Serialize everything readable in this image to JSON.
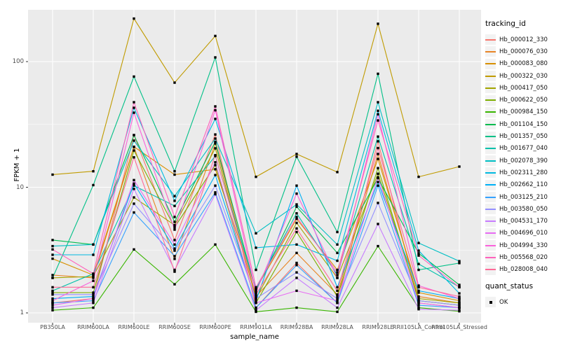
{
  "chart_data": {
    "type": "line",
    "title": "",
    "xlabel": "sample_name",
    "ylabel": "FPKM + 1",
    "y_scale": "log10",
    "y_ticks": [
      1,
      10,
      100
    ],
    "y_minor_ticks": [
      3.1623,
      31.623
    ],
    "ylim": [
      0.95,
      260
    ],
    "grid": true,
    "panel_bg": "#EBEBEB",
    "grid_color": "#FFFFFF",
    "axis_text_color": "#4D4D4D",
    "legend_position": "right",
    "legend_title": "tracking_id",
    "quant_legend_title": "quant_status",
    "quant_status_value": "OK",
    "point_shape": "filled-square",
    "point_color": "#000000",
    "categories": [
      "PB350LA",
      "RRIM600LA",
      "RRIM600LE",
      "RRIM600SE",
      "RRIM600PE",
      "RRIM901LA",
      "RRIM928BA",
      "RRIM928LA",
      "RRIM928LE",
      "RRII105LA_Control",
      "RRII105LA_Stressed"
    ],
    "series": [
      {
        "name": "Hb_000012_330",
        "color": "#F8766D",
        "values": [
          1.2,
          1.3,
          26,
          3.8,
          26.3,
          1.1,
          2.5,
          1.2,
          23.2,
          1.2,
          1.1
        ]
      },
      {
        "name": "Hb_000076_030",
        "color": "#E88526",
        "values": [
          2.0,
          1.9,
          20.9,
          2.69,
          22.3,
          1.35,
          3.0,
          1.4,
          18.4,
          1.35,
          1.2
        ]
      },
      {
        "name": "Hb_000083_080",
        "color": "#D89000",
        "values": [
          2.7,
          2.0,
          21.0,
          12.6,
          13.9,
          1.55,
          5.6,
          2.2,
          16.8,
          1.45,
          1.25
        ]
      },
      {
        "name": "Hb_000322_030",
        "color": "#C09B00",
        "values": [
          12.6,
          13.4,
          220,
          68,
          160,
          12.1,
          18.4,
          13.2,
          200,
          12.1,
          14.6
        ]
      },
      {
        "name": "Hb_000417_050",
        "color": "#A3A500",
        "values": [
          1.9,
          1.95,
          8.3,
          5.0,
          20.4,
          1.3,
          5.2,
          1.9,
          12.8,
          1.3,
          1.2
        ]
      },
      {
        "name": "Hb_000622_050",
        "color": "#7CAE00",
        "values": [
          1.45,
          1.45,
          19.6,
          4.8,
          15.0,
          1.2,
          4.4,
          1.35,
          14.2,
          1.25,
          1.15
        ]
      },
      {
        "name": "Hb_000984_150",
        "color": "#39B600",
        "values": [
          1.05,
          1.1,
          3.2,
          1.69,
          3.5,
          1.02,
          1.1,
          1.02,
          3.4,
          1.1,
          1.03
        ]
      },
      {
        "name": "Hb_001104_150",
        "color": "#00BB4E",
        "values": [
          3.8,
          3.5,
          26.0,
          5.3,
          23.0,
          1.5,
          7.0,
          3.0,
          11.8,
          2.98,
          1.67
        ]
      },
      {
        "name": "Hb_001357_050",
        "color": "#00C087",
        "values": [
          1.9,
          10.4,
          76,
          13.4,
          108,
          2.2,
          17.5,
          4.4,
          80,
          2.2,
          2.49
        ]
      },
      {
        "name": "Hb_001677_040",
        "color": "#00C1AB",
        "values": [
          1.5,
          2.05,
          10.3,
          7.1,
          17.7,
          1.55,
          6.2,
          2.0,
          25.3,
          2.45,
          1.61
        ]
      },
      {
        "name": "Hb_002078_390",
        "color": "#00BFC4",
        "values": [
          3.4,
          3.5,
          23.5,
          8.5,
          24.4,
          4.3,
          7.3,
          3.5,
          47.5,
          3.6,
          2.58
        ]
      },
      {
        "name": "Hb_002311_280",
        "color": "#00BAE0",
        "values": [
          2.9,
          2.9,
          42.9,
          7.8,
          35,
          3.3,
          3.5,
          2.6,
          40.6,
          3.13,
          1.43
        ]
      },
      {
        "name": "Hb_002662_110",
        "color": "#00B0F6",
        "values": [
          1.3,
          1.35,
          10.7,
          3.25,
          12.5,
          1.25,
          10.3,
          1.6,
          11.0,
          1.5,
          1.3
        ]
      },
      {
        "name": "Hb_003125_210",
        "color": "#35A2FF",
        "values": [
          1.2,
          1.25,
          6.3,
          2.83,
          9.1,
          1.1,
          2.4,
          1.2,
          10.3,
          1.15,
          1.1
        ]
      },
      {
        "name": "Hb_003580_050",
        "color": "#9590FF",
        "values": [
          1.4,
          1.4,
          7.4,
          3.13,
          10.3,
          1.3,
          2.1,
          1.3,
          7.5,
          1.25,
          1.15
        ]
      },
      {
        "name": "Hb_004531_170",
        "color": "#C77CFF",
        "values": [
          1.1,
          1.2,
          9.7,
          2.2,
          8.8,
          1.05,
          1.9,
          1.1,
          5.1,
          1.07,
          1.05
        ]
      },
      {
        "name": "Hb_004696_010",
        "color": "#E76BF3",
        "values": [
          1.15,
          1.3,
          11.4,
          3.5,
          15.8,
          1.2,
          1.5,
          1.25,
          12.0,
          1.2,
          1.1
        ]
      },
      {
        "name": "Hb_004994_330",
        "color": "#FA62DB",
        "values": [
          1.25,
          1.8,
          39.2,
          4.6,
          41,
          1.45,
          8.9,
          1.9,
          38.1,
          1.65,
          1.3
        ]
      },
      {
        "name": "Hb_005568_020",
        "color": "#FF62BC",
        "values": [
          3.2,
          2.05,
          47.5,
          5.8,
          44,
          1.6,
          5.8,
          2.1,
          34,
          2.86,
          1.6
        ]
      },
      {
        "name": "Hb_028008_040",
        "color": "#FF6A98",
        "values": [
          1.6,
          1.6,
          17.3,
          2.13,
          18.0,
          1.4,
          4.7,
          1.5,
          20.5,
          1.6,
          1.35
        ]
      }
    ]
  }
}
